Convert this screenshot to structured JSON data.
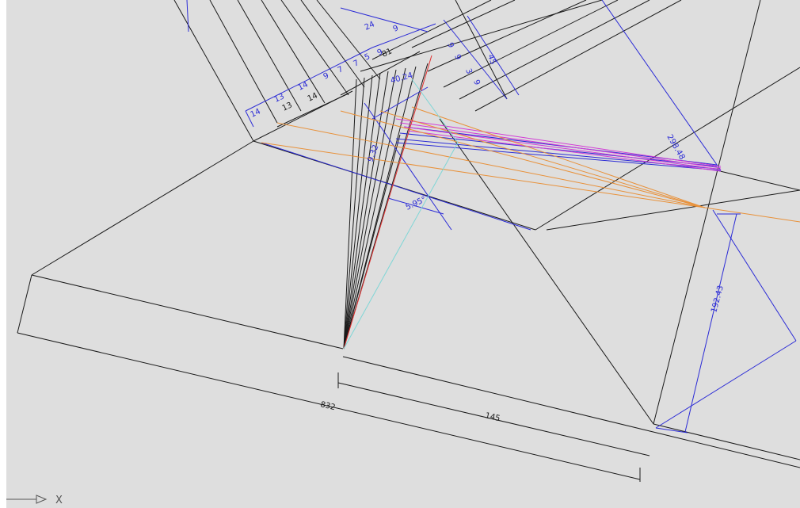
{
  "drawing": {
    "dimensions": {
      "d_14_a": "14",
      "d_13_a": "13",
      "d_13_b": "13",
      "d_14_b": "14",
      "d_14_c": "14",
      "d_9_a": "9",
      "d_7_a": "7",
      "d_7_b": "7",
      "d_5_a": "5",
      "d_9_b": "9",
      "d_24_a": "24",
      "d_9_c": "9",
      "d_81": "81",
      "d_40_24": "40.24",
      "d_9_d": "9",
      "d_9_e": "9",
      "d_3": "3",
      "d_9_f": "9",
      "d_45": "45",
      "d_9_32": "9.32",
      "d_5_95": "5.95°",
      "d_298_48": "298.48",
      "d_192_43": "192.43",
      "d_832": "832",
      "d_145": "145"
    },
    "layer_colors": {
      "black": "#1a1a1a",
      "blue": "#2b2bd6",
      "orange": "#e8913a",
      "magenta": "#d23bd6",
      "red": "#e03030",
      "cyan": "#7fd6d6",
      "background": "#dedede"
    }
  },
  "ucs_icon": {
    "axis_label": "X"
  }
}
